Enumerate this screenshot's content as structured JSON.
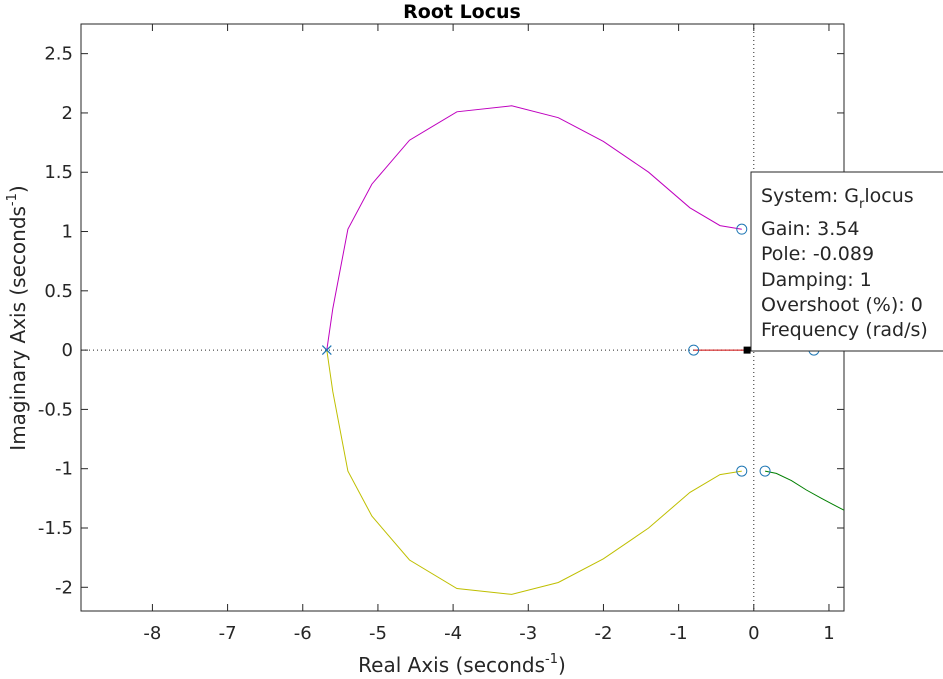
{
  "chart_data": {
    "type": "line",
    "title": "Root Locus",
    "xlabel": "Real Axis (seconds",
    "xlabel_exp": "-1",
    "xlabel_close": ")",
    "ylabel": "Imaginary Axis (seconds",
    "ylabel_exp": "-1",
    "ylabel_close": ")",
    "xlim": [
      -8.95,
      1.2
    ],
    "ylim": [
      -2.2,
      2.75
    ],
    "xticks": [
      -8,
      -7,
      -6,
      -5,
      -4,
      -3,
      -2,
      -1,
      0,
      1
    ],
    "yticks": [
      -2,
      -1.5,
      -1,
      -0.5,
      0,
      0.5,
      1,
      1.5,
      2,
      2.5
    ],
    "grid": false,
    "poles": [
      [
        -5.68,
        0
      ]
    ],
    "zeros": [
      [
        -0.16,
        1.02
      ],
      [
        -0.16,
        -1.02
      ],
      [
        0.15,
        -1.02
      ],
      [
        -0.8,
        0
      ],
      [
        0.8,
        0
      ]
    ],
    "series": [
      {
        "color": "#bf00bf",
        "points": [
          [
            -5.68,
            0
          ],
          [
            -5.6,
            0.35
          ],
          [
            -5.4,
            1.02
          ],
          [
            -5.08,
            1.4
          ],
          [
            -4.58,
            1.77
          ],
          [
            -3.95,
            2.01
          ],
          [
            -3.22,
            2.06
          ],
          [
            -2.6,
            1.96
          ],
          [
            -2.0,
            1.76
          ],
          [
            -1.4,
            1.5
          ],
          [
            -0.85,
            1.2
          ],
          [
            -0.45,
            1.05
          ],
          [
            -0.16,
            1.02
          ]
        ]
      },
      {
        "color": "#bfbf00",
        "points": [
          [
            -5.68,
            0
          ],
          [
            -5.6,
            -0.35
          ],
          [
            -5.4,
            -1.02
          ],
          [
            -5.08,
            -1.4
          ],
          [
            -4.58,
            -1.77
          ],
          [
            -3.95,
            -2.01
          ],
          [
            -3.22,
            -2.06
          ],
          [
            -2.6,
            -1.96
          ],
          [
            -2.0,
            -1.76
          ],
          [
            -1.4,
            -1.5
          ],
          [
            -0.85,
            -1.2
          ],
          [
            -0.45,
            -1.05
          ],
          [
            -0.16,
            -1.02
          ]
        ]
      },
      {
        "color": "#007f00",
        "points": [
          [
            0.15,
            -1.02
          ],
          [
            0.3,
            -1.04
          ],
          [
            0.5,
            -1.1
          ],
          [
            0.7,
            -1.18
          ],
          [
            0.9,
            -1.25
          ],
          [
            1.05,
            -1.3
          ],
          [
            1.2,
            -1.35
          ]
        ]
      },
      {
        "color": "#cc0000",
        "points": [
          [
            -0.8,
            0
          ],
          [
            -0.089,
            0
          ]
        ]
      },
      {
        "color": "#00bfbf",
        "points": [
          [
            -0.089,
            0
          ],
          [
            0.8,
            0
          ]
        ]
      }
    ],
    "selected_point": [
      -0.089,
      0
    ],
    "datatip": {
      "system_label": "System: G",
      "system_sub": "r",
      "system_rest": "locus",
      "gain": "Gain: 3.54",
      "pole": "Pole: -0.089",
      "damping": "Damping: 1",
      "overshoot": "Overshoot (%): 0",
      "frequency": "Frequency (rad/s)"
    }
  }
}
